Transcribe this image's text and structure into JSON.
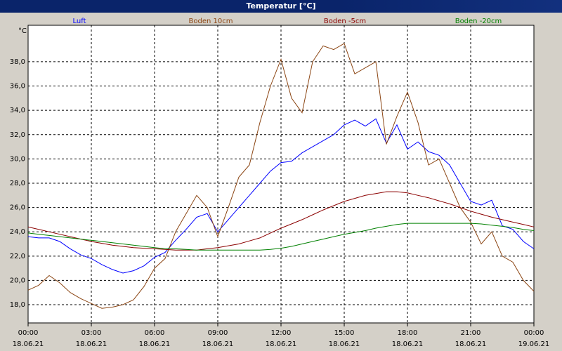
{
  "chart_data": {
    "type": "line",
    "title": "Temperatur [°C]",
    "y_unit": "°C",
    "x": [
      0,
      0.5,
      1,
      1.5,
      2,
      2.5,
      3,
      3.5,
      4,
      4.5,
      5,
      5.5,
      6,
      6.5,
      7,
      7.5,
      8,
      8.5,
      9,
      9.5,
      10,
      10.5,
      11,
      11.5,
      12,
      12.5,
      13,
      13.5,
      14,
      14.5,
      15,
      15.5,
      16,
      16.5,
      17,
      17.5,
      18,
      18.5,
      19,
      19.5,
      20,
      20.5,
      21,
      21.5,
      22,
      22.5,
      23,
      23.5,
      24
    ],
    "xlim": [
      0,
      24
    ],
    "xticks": [
      {
        "value": 0,
        "label": "00:00"
      },
      {
        "value": 3,
        "label": "03:00"
      },
      {
        "value": 6,
        "label": "06:00"
      },
      {
        "value": 9,
        "label": "09:00"
      },
      {
        "value": 12,
        "label": "12:00"
      },
      {
        "value": 15,
        "label": "15:00"
      },
      {
        "value": 18,
        "label": "18:00"
      },
      {
        "value": 21,
        "label": "21:00"
      },
      {
        "value": 24,
        "label": "00:00"
      }
    ],
    "xtick_dates": [
      "18.06.21",
      "18.06.21",
      "18.06.21",
      "18.06.21",
      "18.06.21",
      "18.06.21",
      "18.06.21",
      "18.06.21",
      "19.06.21"
    ],
    "ylim": [
      16.5,
      41
    ],
    "yticks": [
      {
        "value": 18,
        "label": "18,0"
      },
      {
        "value": 20,
        "label": "20,0"
      },
      {
        "value": 22,
        "label": "22,0"
      },
      {
        "value": 24,
        "label": "24,0"
      },
      {
        "value": 26,
        "label": "26,0"
      },
      {
        "value": 28,
        "label": "28,0"
      },
      {
        "value": 30,
        "label": "30,0"
      },
      {
        "value": 32,
        "label": "32,0"
      },
      {
        "value": 34,
        "label": "34,0"
      },
      {
        "value": 36,
        "label": "36,0"
      },
      {
        "value": 38,
        "label": "38,0"
      }
    ],
    "grid": true,
    "series": [
      {
        "name": "Luft",
        "color": "#0000ff",
        "values": [
          23.6,
          23.5,
          23.5,
          23.2,
          22.6,
          22.1,
          21.8,
          21.3,
          20.9,
          20.6,
          20.8,
          21.2,
          21.9,
          22.3,
          23.3,
          24.2,
          25.2,
          25.5,
          24.0,
          25.0,
          26.0,
          27.0,
          28.0,
          29.0,
          29.7,
          29.8,
          30.5,
          31.0,
          31.5,
          32.0,
          32.8,
          33.2,
          32.7,
          33.3,
          31.3,
          32.8,
          30.8,
          31.4,
          30.6,
          30.3,
          29.5,
          28.0,
          26.5,
          26.2,
          26.6,
          24.5,
          24.2,
          23.2,
          22.6
        ]
      },
      {
        "name": "Boden 10cm",
        "color": "#8b4513",
        "values": [
          19.2,
          19.6,
          20.4,
          19.8,
          19.0,
          18.5,
          18.1,
          17.7,
          17.8,
          18.0,
          18.4,
          19.5,
          21.0,
          21.8,
          24.0,
          25.5,
          27.0,
          26.0,
          23.6,
          26.0,
          28.5,
          29.5,
          33.0,
          36.0,
          38.2,
          35.0,
          33.8,
          38.0,
          39.3,
          39.0,
          39.5,
          37.0,
          37.5,
          38.0,
          31.2,
          33.5,
          35.5,
          33.0,
          29.5,
          30.0,
          28.0,
          26.0,
          24.8,
          23.0,
          24.0,
          22.0,
          21.5,
          20.0,
          19.1
        ]
      },
      {
        "name": "Boden -5cm",
        "color": "#8b0000",
        "values": [
          24.4,
          24.2,
          24.0,
          23.8,
          23.6,
          23.4,
          23.2,
          23.05,
          22.9,
          22.8,
          22.7,
          22.65,
          22.6,
          22.55,
          22.5,
          22.5,
          22.5,
          22.6,
          22.7,
          22.85,
          23.0,
          23.25,
          23.5,
          23.9,
          24.3,
          24.65,
          25.0,
          25.4,
          25.8,
          26.15,
          26.5,
          26.75,
          27.0,
          27.15,
          27.3,
          27.3,
          27.2,
          27.0,
          26.8,
          26.55,
          26.3,
          26.0,
          25.7,
          25.45,
          25.2,
          25.0,
          24.8,
          24.6,
          24.4
        ]
      },
      {
        "name": "Boden -20cm",
        "color": "#008000",
        "values": [
          23.9,
          23.8,
          23.7,
          23.6,
          23.5,
          23.4,
          23.3,
          23.2,
          23.1,
          23.0,
          22.9,
          22.8,
          22.7,
          22.6,
          22.6,
          22.55,
          22.5,
          22.5,
          22.5,
          22.5,
          22.5,
          22.5,
          22.5,
          22.55,
          22.65,
          22.8,
          23.0,
          23.2,
          23.4,
          23.6,
          23.8,
          23.95,
          24.1,
          24.3,
          24.45,
          24.6,
          24.7,
          24.7,
          24.7,
          24.7,
          24.7,
          24.7,
          24.7,
          24.65,
          24.55,
          24.45,
          24.35,
          24.2,
          24.1
        ]
      }
    ]
  }
}
